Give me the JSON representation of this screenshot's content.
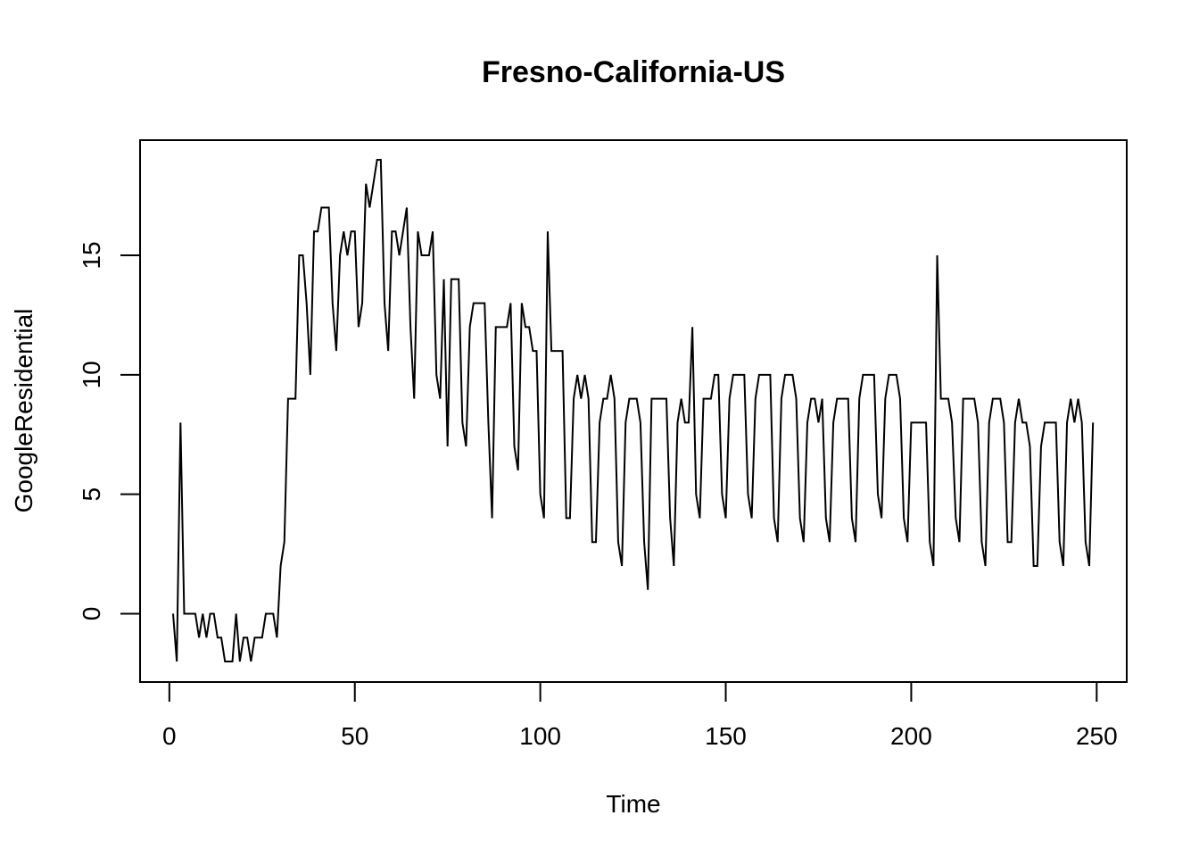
{
  "chart_data": {
    "type": "line",
    "title": "Fresno-California-US",
    "xlabel": "Time",
    "ylabel": "GoogleResidential",
    "xlim": [
      1,
      248
    ],
    "ylim": [
      -2,
      19
    ],
    "x_ticks": [
      0,
      50,
      100,
      150,
      200,
      250
    ],
    "y_ticks": [
      0,
      5,
      10,
      15
    ],
    "grid": false,
    "line_color": "#000000",
    "x_start": 1,
    "values": [
      0,
      -2,
      8,
      0,
      0,
      0,
      0,
      -1,
      0,
      -1,
      0,
      0,
      -1,
      -1,
      -2,
      -2,
      -2,
      0,
      -2,
      -1,
      -1,
      -2,
      -1,
      -1,
      -1,
      0,
      0,
      0,
      -1,
      2,
      3,
      9,
      9,
      9,
      15,
      15,
      13,
      10,
      16,
      16,
      17,
      17,
      17,
      13,
      11,
      15,
      16,
      15,
      16,
      16,
      12,
      13,
      18,
      17,
      18,
      19,
      19,
      13,
      11,
      16,
      16,
      15,
      16,
      17,
      12,
      9,
      16,
      15,
      15,
      15,
      16,
      10,
      9,
      14,
      7,
      14,
      14,
      14,
      8,
      7,
      12,
      13,
      13,
      13,
      13,
      8,
      4,
      12,
      12,
      12,
      12,
      13,
      7,
      6,
      13,
      12,
      12,
      11,
      11,
      5,
      4,
      16,
      11,
      11,
      11,
      11,
      4,
      4,
      9,
      10,
      9,
      10,
      9,
      3,
      3,
      8,
      9,
      9,
      10,
      9,
      3,
      2,
      8,
      9,
      9,
      9,
      8,
      3,
      1,
      9,
      9,
      9,
      9,
      9,
      4,
      2,
      8,
      9,
      8,
      8,
      12,
      5,
      4,
      9,
      9,
      9,
      10,
      10,
      5,
      4,
      9,
      10,
      10,
      10,
      10,
      5,
      4,
      9,
      10,
      10,
      10,
      10,
      4,
      3,
      9,
      10,
      10,
      10,
      9,
      4,
      3,
      8,
      9,
      9,
      8,
      9,
      4,
      3,
      8,
      9,
      9,
      9,
      9,
      4,
      3,
      9,
      10,
      10,
      10,
      10,
      5,
      4,
      9,
      10,
      10,
      10,
      9,
      4,
      3,
      8,
      8,
      8,
      8,
      8,
      3,
      2,
      15,
      9,
      9,
      9,
      8,
      4,
      3,
      9,
      9,
      9,
      9,
      8,
      3,
      2,
      8,
      9,
      9,
      9,
      8,
      3,
      3,
      8,
      9,
      8,
      8,
      7,
      2,
      2,
      7,
      8,
      8,
      8,
      8,
      3,
      2,
      8,
      9,
      8,
      9,
      8,
      3,
      2,
      8
    ]
  }
}
